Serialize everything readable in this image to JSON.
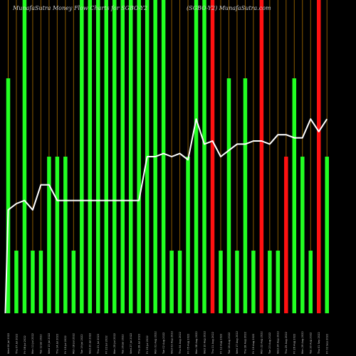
{
  "chart_data": {
    "type": "bar",
    "title_left": "MunafaSutra  Money Flow  Charts for SGBO-Y2",
    "title_right": "(SGBO-Y2)  MunafaSutra.com",
    "ylim": [
      0,
      100
    ],
    "colors": {
      "up": "#22ff22",
      "down": "#ff1111",
      "grid": "#8a5a00",
      "line": "#ffffff",
      "background": "#000000"
    },
    "categories": [
      "Wed 06 Jul 2022",
      "Thu 07 Jul 2022",
      "Fri 08 Jul 2022",
      "Mon 11 Jul 2022",
      "Tue 12 Jul 2022",
      "Wed 13 Jul 2022",
      "Thu 14 Jul 2022",
      "Fri 15 Jul 2022",
      "Mon 18 Jul 2022",
      "Tue 19 Jul 2022",
      "Wed 20 Jul 2022",
      "Thu 21 Jul 2022",
      "Fri 22 Jul 2022",
      "Mon 25 Jul 2022",
      "Tue 26 Jul 2022",
      "Wed 27 Jul 2022",
      "Thu 28 Jul 2022",
      "Fri 29 Jul 2022",
      "Mon 01 Aug 2022",
      "Tue 02 Aug 2022",
      "Wed 03 Aug 2022",
      "Thu 04 Aug 2022",
      "Fri 05 Aug 2022",
      "Mon 08 Aug 2022",
      "Wed 10 Aug 2022",
      "Thu 11 Aug 2022",
      "Fri 12 Aug 2022",
      "Tue 16 Aug 2022",
      "Wed 17 Aug 2022",
      "Thu 18 Aug 2022",
      "Fri 19 Aug 2022",
      "Mon 22 Aug 2022",
      "Tue 23 Aug 2022",
      "Wed 24 Aug 2022",
      "Thu 25 Aug 2022",
      "Fri 26 Aug 2022",
      "Mon 29 Aug 2022",
      "Tue 30 Aug 2022",
      "Thu 01 Sep 2022",
      "Fri 02 Sep 2022"
    ],
    "values": [
      75,
      20,
      100,
      20,
      20,
      50,
      50,
      50,
      20,
      100,
      100,
      100,
      100,
      100,
      100,
      100,
      100,
      100,
      100,
      100,
      20,
      20,
      50,
      100,
      100,
      100,
      20,
      75,
      20,
      75,
      20,
      100,
      20,
      20,
      50,
      75,
      50,
      20,
      100,
      50
    ],
    "bar_colors": [
      "up",
      "up",
      "up",
      "up",
      "up",
      "up",
      "up",
      "up",
      "up",
      "up",
      "up",
      "up",
      "up",
      "up",
      "up",
      "up",
      "up",
      "up",
      "up",
      "up",
      "up",
      "up",
      "up",
      "up",
      "up",
      "down",
      "up",
      "up",
      "up",
      "up",
      "up",
      "down",
      "up",
      "up",
      "down",
      "up",
      "up",
      "up",
      "down",
      "up"
    ],
    "line_values": [
      33,
      35,
      36,
      33,
      41,
      41,
      36,
      36,
      36,
      36,
      36,
      36,
      36,
      36,
      36,
      36,
      36,
      50,
      50,
      51,
      50,
      51,
      49,
      62,
      54,
      55,
      50,
      52,
      54,
      54,
      55,
      55,
      54,
      57,
      57,
      56,
      56,
      62,
      58,
      62
    ]
  }
}
